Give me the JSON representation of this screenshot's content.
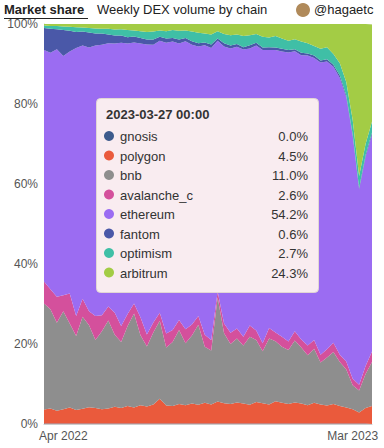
{
  "chart_data": {
    "type": "area",
    "title": "Market share",
    "subtitle": "Weekly DEX volume by chain",
    "author": "@hagaetc",
    "stacked": true,
    "grid": true,
    "categories": [
      null,
      null,
      null,
      "Apr 2022",
      null,
      null,
      null,
      null,
      null,
      null,
      null,
      null,
      null,
      null,
      null,
      null,
      null,
      null,
      null,
      null,
      null,
      null,
      null,
      null,
      null,
      null,
      null,
      null,
      null,
      null,
      null,
      null,
      null,
      null,
      null,
      null,
      null,
      null,
      null,
      null,
      null,
      null,
      null,
      null,
      null,
      null,
      null,
      null,
      "Mar 2023",
      null,
      null,
      null
    ],
    "ylim": [
      0,
      100
    ],
    "yticks": [
      {
        "value": 0,
        "label": "0%"
      },
      {
        "value": 20,
        "label": "20%"
      },
      {
        "value": 40,
        "label": "40%"
      },
      {
        "value": 60,
        "label": "60%"
      },
      {
        "value": 80,
        "label": "80%"
      },
      {
        "value": 100,
        "label": "100%"
      }
    ],
    "series": [
      {
        "name": "gnosis",
        "color": "#3d5a8c",
        "values": [
          0.1,
          0.1,
          0.1,
          0.1,
          0.1,
          0.1,
          0.1,
          0.1,
          0.1,
          0.1,
          0.1,
          0.1,
          0.1,
          0.1,
          0.1,
          0.1,
          0.1,
          0.1,
          0.1,
          0.1,
          0.1,
          0.1,
          0.1,
          0.1,
          0.1,
          0.1,
          0.1,
          0.1,
          0.1,
          0.1,
          0.1,
          0.1,
          0.1,
          0.1,
          0.1,
          0.1,
          0.1,
          0.1,
          0.1,
          0.1,
          0.1,
          0.1,
          0.1,
          0.1,
          0.1,
          0.1,
          0.1,
          0.1,
          0.1,
          0.1,
          0.1,
          0.0
        ]
      },
      {
        "name": "polygon",
        "color": "#ea5a3c",
        "values": [
          3.5,
          3.8,
          3.2,
          3.6,
          4.0,
          3.4,
          3.7,
          4.1,
          3.9,
          3.6,
          3.8,
          4.2,
          3.9,
          4.4,
          4.0,
          4.6,
          4.3,
          4.8,
          6.2,
          4.5,
          4.4,
          4.9,
          4.6,
          5.0,
          4.7,
          5.2,
          4.8,
          5.5,
          5.1,
          4.9,
          5.3,
          5.0,
          4.7,
          5.4,
          5.1,
          4.8,
          5.6,
          5.2,
          4.9,
          5.3,
          5.0,
          4.6,
          5.2,
          4.8,
          4.5,
          4.9,
          4.4,
          4.0,
          3.6,
          2.8,
          3.9,
          4.5
        ]
      },
      {
        "name": "bnb",
        "color": "#8e8e8e",
        "values": [
          26.5,
          24.8,
          22.0,
          24.5,
          21.0,
          18.5,
          23.0,
          20.5,
          17.0,
          19.5,
          22.0,
          18.0,
          16.5,
          20.0,
          23.5,
          17.5,
          15.0,
          18.0,
          19.5,
          14.5,
          16.0,
          18.5,
          15.5,
          17.0,
          20.0,
          14.0,
          13.5,
          26.0,
          17.5,
          15.0,
          16.0,
          14.5,
          17.0,
          15.5,
          13.0,
          16.5,
          15.0,
          14.0,
          13.5,
          15.5,
          14.0,
          12.5,
          13.5,
          10.5,
          12.0,
          13.0,
          11.0,
          9.5,
          6.0,
          5.5,
          8.5,
          11.0
        ]
      },
      {
        "name": "avalanche_c",
        "color": "#d4509c",
        "values": [
          5.5,
          5.0,
          6.5,
          4.0,
          7.5,
          5.0,
          4.5,
          3.5,
          6.0,
          4.0,
          3.5,
          5.5,
          4.0,
          3.0,
          2.5,
          4.5,
          3.0,
          2.5,
          2.0,
          3.5,
          3.0,
          2.5,
          3.5,
          2.8,
          2.2,
          3.0,
          2.6,
          1.5,
          2.4,
          2.8,
          2.5,
          2.2,
          2.8,
          2.4,
          2.0,
          2.6,
          2.2,
          2.5,
          2.1,
          2.3,
          2.0,
          2.4,
          2.2,
          1.9,
          2.1,
          2.3,
          1.8,
          2.0,
          1.6,
          1.4,
          2.0,
          2.6
        ]
      },
      {
        "name": "ethereum",
        "color": "#9b6cf2",
        "values": [
          57.9,
          59.1,
          61.9,
          59.8,
          60.5,
          67.0,
          63.3,
          65.9,
          67.6,
          67.6,
          65.8,
          67.3,
          70.8,
          67.6,
          65.3,
          68.4,
          72.5,
          69.4,
          68.0,
          72.7,
          72.1,
          69.1,
          72.0,
          69.9,
          67.4,
          72.4,
          73.0,
          62.7,
          69.3,
          71.1,
          70.4,
          71.8,
          69.3,
          71.2,
          73.3,
          69.5,
          70.6,
          71.3,
          72.3,
          70.0,
          71.1,
          72.5,
          70.5,
          73.1,
          71.9,
          69.0,
          69.2,
          66.0,
          60.7,
          48.8,
          52.2,
          54.2
        ]
      },
      {
        "name": "fantom",
        "color": "#4a58a8",
        "values": [
          5.5,
          6.0,
          5.0,
          6.5,
          5.2,
          4.0,
          3.5,
          3.8,
          3.0,
          2.8,
          2.2,
          2.0,
          1.8,
          1.6,
          1.5,
          1.4,
          1.2,
          1.3,
          1.0,
          1.1,
          0.9,
          1.0,
          0.8,
          0.9,
          0.8,
          0.7,
          0.9,
          0.6,
          0.8,
          0.7,
          0.7,
          0.6,
          0.8,
          0.7,
          0.6,
          0.7,
          0.6,
          0.7,
          0.6,
          0.5,
          0.6,
          0.5,
          0.6,
          0.5,
          0.6,
          0.5,
          0.6,
          0.5,
          0.4,
          0.4,
          0.5,
          0.6
        ]
      },
      {
        "name": "optimism",
        "color": "#3fbfa6",
        "values": [
          0.6,
          0.7,
          0.8,
          0.9,
          1.0,
          1.2,
          1.0,
          1.1,
          1.3,
          1.2,
          1.4,
          1.5,
          1.6,
          1.8,
          1.5,
          1.7,
          1.9,
          2.0,
          1.6,
          1.8,
          2.0,
          2.2,
          1.9,
          2.4,
          2.6,
          2.2,
          2.5,
          1.8,
          2.3,
          2.6,
          2.4,
          2.8,
          2.5,
          2.2,
          2.7,
          2.4,
          2.9,
          2.6,
          2.3,
          2.5,
          2.8,
          2.6,
          2.4,
          2.9,
          3.0,
          2.7,
          3.1,
          3.4,
          3.6,
          3.0,
          2.8,
          2.7
        ]
      },
      {
        "name": "arbitrum",
        "color": "#a3cc45",
        "values": [
          0.4,
          0.5,
          0.5,
          0.6,
          0.7,
          0.8,
          0.9,
          1.0,
          1.1,
          1.2,
          1.2,
          1.4,
          1.3,
          1.5,
          1.6,
          1.8,
          2.0,
          1.9,
          1.6,
          1.8,
          1.5,
          1.7,
          1.6,
          1.9,
          2.2,
          2.4,
          2.6,
          1.8,
          2.5,
          2.8,
          2.6,
          3.0,
          2.8,
          2.5,
          3.2,
          3.4,
          3.0,
          3.6,
          4.2,
          3.8,
          4.4,
          4.8,
          5.5,
          6.2,
          5.8,
          7.5,
          9.8,
          14.5,
          24.0,
          38.0,
          30.0,
          24.3
        ]
      }
    ],
    "tooltip": {
      "title": "2023-03-27 00:00",
      "labels": [
        "0.0%",
        "4.5%",
        "11.0%",
        "2.6%",
        "54.2%",
        "0.6%",
        "2.7%",
        "24.3%"
      ]
    }
  }
}
